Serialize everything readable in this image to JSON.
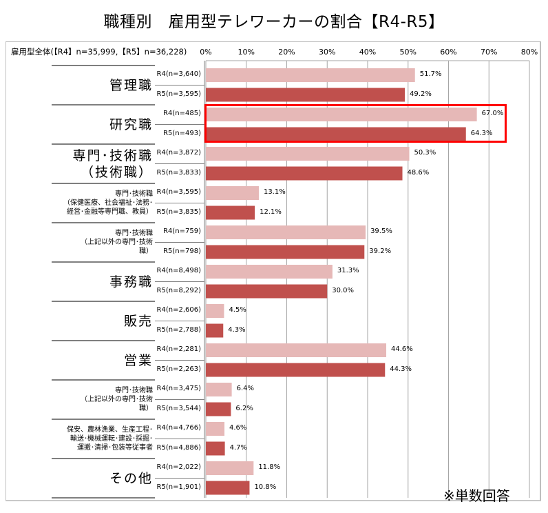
{
  "title": "職種別　雇用型テレワーカーの割合【R4-R5】",
  "note": "※単数回答",
  "colors": {
    "r4": "#e6b8b7",
    "r5": "#c0504d",
    "highlight": "#ff0000",
    "grid": "#a6a6a6"
  },
  "chart_data": {
    "type": "bar",
    "orientation": "horizontal",
    "title": "職種別　雇用型テレワーカーの割合【R4-R5】",
    "overall_label": "雇用型全体(【R4】n=35,999,【R5】n=36,228)",
    "xlim": [
      0,
      80
    ],
    "xticks": [
      "0%",
      "10%",
      "20%",
      "30%",
      "40%",
      "50%",
      "60%",
      "70%",
      "80%"
    ],
    "grid": true,
    "highlighted_category": "研究職",
    "categories": [
      {
        "name": "管理職",
        "size": "big",
        "lines": [
          "管理職"
        ]
      },
      {
        "name": "研究職",
        "size": "big",
        "lines": [
          "研究職"
        ]
      },
      {
        "name": "専門・技術職（技術職）",
        "size": "big",
        "lines": [
          "専門･技術職",
          "（技術職）"
        ]
      },
      {
        "name": "専門・技術職（保健医療、社会福祉・法務・経営・金融等専門職、教員）",
        "size": "small",
        "lines": [
          "専門･技術職",
          "（保健医療、社会福祉･法務･",
          "経営･金融等専門職、教員）"
        ]
      },
      {
        "name": "専門・技術職（上記以外の専門・技術職）",
        "size": "small",
        "lines": [
          "専門･技術職",
          "（上記以外の専門･技術",
          "職）"
        ]
      },
      {
        "name": "事務職",
        "size": "big",
        "lines": [
          "事務職"
        ]
      },
      {
        "name": "販売",
        "size": "big",
        "lines": [
          "販売"
        ]
      },
      {
        "name": "営業",
        "size": "big",
        "lines": [
          "営業"
        ]
      },
      {
        "name": "専門・技術職（上記以外の専門・技術職）",
        "size": "small",
        "lines": [
          "専門･技術職",
          "（上記以外の専門･技術",
          "職）"
        ]
      },
      {
        "name": "保安、農林漁業、生産工程・輸送・機械運転・建設・採掘・運搬・清掃・包装等従事者",
        "size": "small",
        "lines": [
          "保安、農林漁業、生産工程･",
          "輸送･機械運転･建設･採掘･",
          "運搬･清掃･包装等従事者"
        ]
      },
      {
        "name": "その他",
        "size": "big",
        "lines": [
          "その他"
        ]
      }
    ],
    "series": [
      {
        "name": "R4",
        "values": [
          51.7,
          67.0,
          50.3,
          13.1,
          39.5,
          31.3,
          4.5,
          44.6,
          6.4,
          4.6,
          11.8
        ],
        "value_labels": [
          "51.7%",
          "67.0%",
          "50.3%",
          "13.1%",
          "39.5%",
          "31.3%",
          "4.5%",
          "44.6%",
          "6.4%",
          "4.6%",
          "11.8%"
        ],
        "sample_labels": [
          "R4(n=3,640)",
          "R4(n=485)",
          "R4(n=3,872)",
          "R4(n=3,595)",
          "R4(n=759)",
          "R4(n=8,498)",
          "R4(n=2,606)",
          "R4(n=2,281)",
          "R4(n=3,475)",
          "R4(n=4,766)",
          "R4(n=2,022)"
        ]
      },
      {
        "name": "R5",
        "values": [
          49.2,
          64.3,
          48.6,
          12.1,
          39.2,
          30.0,
          4.3,
          44.3,
          6.2,
          4.7,
          10.8
        ],
        "value_labels": [
          "49.2%",
          "64.3%",
          "48.6%",
          "12.1%",
          "39.2%",
          "30.0%",
          "4.3%",
          "44.3%",
          "6.2%",
          "4.7%",
          "10.8%"
        ],
        "sample_labels": [
          "R5(n=3,595)",
          "R5(n=493)",
          "R5(n=3,833)",
          "R5(n=3,835)",
          "R5(n=798)",
          "R5(n=8,292)",
          "R5(n=2,788)",
          "R5(n=2,263)",
          "R5(n=3,544)",
          "R5(n=4,886)",
          "R5(n=1,901)"
        ]
      }
    ]
  }
}
